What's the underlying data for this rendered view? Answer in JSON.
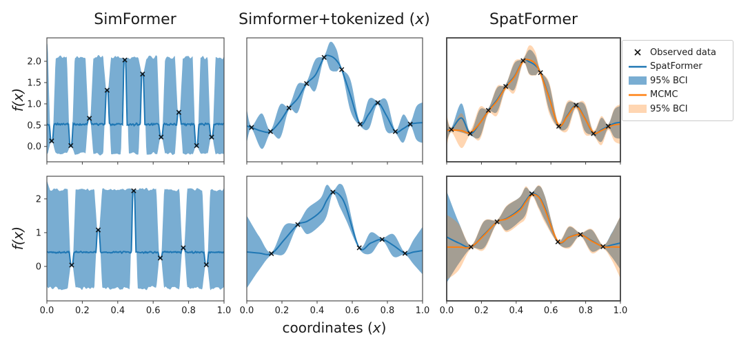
{
  "figure": {
    "titles": [
      {
        "text": "SimFormer"
      },
      {
        "text": "Simformer+tokenized (x)"
      },
      {
        "text": "SpatFormer"
      }
    ],
    "ylabel": "f(x)",
    "xlabel": "coordinates (x)",
    "colors": {
      "spatformer_line": "#1f77b4",
      "spatformer_fill": "rgba(31,119,180,0.6)",
      "mcmc_line": "#ff7f0e",
      "mcmc_fill": "rgba(255,127,14,0.32)",
      "marker": "#111111",
      "spine": "#3c3c3c",
      "text": "#1b1b1b"
    },
    "legend": {
      "items": [
        {
          "swatch": "x-marker",
          "label": "Observed data"
        },
        {
          "swatch": "blue-line",
          "label": "SpatFormer"
        },
        {
          "swatch": "blue-patch",
          "label": "95% BCI"
        },
        {
          "swatch": "orange-line",
          "label": "MCMC"
        },
        {
          "swatch": "orange-patch",
          "label": "95% BCI"
        }
      ]
    }
  },
  "chart_data": [
    {
      "id": "simformer-row1",
      "type": "simformer_band",
      "row": 0,
      "col": 0,
      "xlim": [
        0,
        1
      ],
      "ylim": [
        -0.36,
        2.55
      ],
      "yticks": [
        0.0,
        0.5,
        1.0,
        1.5,
        2.0
      ],
      "ytick_labels": [
        "0.0",
        "0.5",
        "1.0",
        "1.5",
        "2.0"
      ],
      "xticks": [
        0,
        0.2,
        0.4,
        0.6,
        0.8,
        1
      ],
      "observed_x": [
        0.027,
        0.135,
        0.24,
        0.34,
        0.44,
        0.54,
        0.645,
        0.745,
        0.845,
        0.93
      ],
      "observed_y": [
        0.13,
        0.02,
        0.66,
        1.32,
        2.03,
        1.7,
        0.22,
        0.8,
        0.02,
        0.22
      ],
      "band_top": 2.1,
      "band_bottom": -0.17,
      "mean_level": 0.52,
      "top_noise": 0.055,
      "bottom_noise": 0.04,
      "mean_noise": 0.03,
      "edge_spike_top": 2.45,
      "notch_width": 0.022,
      "seed": 11
    },
    {
      "id": "tokenized-row1",
      "type": "gp",
      "row": 0,
      "col": 1,
      "xlim": [
        0,
        1
      ],
      "ylim": [
        -0.8,
        2.56
      ],
      "xticks": [
        0,
        0.2,
        0.4,
        0.6,
        0.8,
        1
      ],
      "observed_x": [
        0.027,
        0.135,
        0.24,
        0.34,
        0.44,
        0.54,
        0.645,
        0.745,
        0.845,
        0.93
      ],
      "observed_y": [
        0.13,
        0.02,
        0.66,
        1.32,
        2.03,
        1.7,
        0.22,
        0.8,
        0.02,
        0.22
      ],
      "x": [
        0,
        0.027,
        0.085,
        0.135,
        0.19,
        0.24,
        0.29,
        0.34,
        0.39,
        0.44,
        0.475,
        0.51,
        0.54,
        0.59,
        0.645,
        0.695,
        0.745,
        0.795,
        0.845,
        0.89,
        0.93,
        0.965,
        1
      ],
      "mean": [
        0.17,
        0.13,
        0.03,
        0.02,
        0.3,
        0.66,
        0.92,
        1.32,
        1.55,
        2.03,
        2.07,
        1.95,
        1.7,
        1.0,
        0.22,
        0.5,
        0.8,
        0.45,
        0.02,
        0.1,
        0.22,
        0.25,
        0.26
      ],
      "half": [
        0.45,
        0.04,
        0.48,
        0.04,
        0.45,
        0.05,
        0.38,
        0.05,
        0.42,
        0.04,
        0.38,
        0.3,
        0.04,
        0.42,
        0.05,
        0.4,
        0.05,
        0.42,
        0.04,
        0.38,
        0.05,
        0.45,
        0.55
      ]
    },
    {
      "id": "spatformer-row1",
      "type": "gp_mcmc",
      "row": 0,
      "col": 2,
      "xlim": [
        0,
        1
      ],
      "ylim": [
        -0.76,
        2.66
      ],
      "xticks": [
        0,
        0.2,
        0.4,
        0.6,
        0.8,
        1
      ],
      "observed_x": [
        0.027,
        0.135,
        0.24,
        0.34,
        0.44,
        0.54,
        0.645,
        0.745,
        0.845,
        0.93
      ],
      "observed_y": [
        0.13,
        0.02,
        0.66,
        1.32,
        2.03,
        1.7,
        0.22,
        0.8,
        0.02,
        0.22
      ],
      "x": [
        0,
        0.027,
        0.085,
        0.135,
        0.19,
        0.24,
        0.29,
        0.34,
        0.39,
        0.44,
        0.475,
        0.51,
        0.54,
        0.59,
        0.645,
        0.695,
        0.745,
        0.795,
        0.845,
        0.89,
        0.93,
        0.965,
        1
      ],
      "mean": [
        0.14,
        0.13,
        0.45,
        0.02,
        0.3,
        0.66,
        0.95,
        1.32,
        1.6,
        2.03,
        2.0,
        1.9,
        1.7,
        1.02,
        0.22,
        0.52,
        0.8,
        0.45,
        0.02,
        0.12,
        0.22,
        0.3,
        0.33
      ],
      "half": [
        0.35,
        0.05,
        0.4,
        0.05,
        0.38,
        0.06,
        0.33,
        0.06,
        0.36,
        0.05,
        0.33,
        0.27,
        0.05,
        0.36,
        0.06,
        0.34,
        0.06,
        0.36,
        0.05,
        0.33,
        0.06,
        0.38,
        0.45
      ],
      "mcmc_mean": [
        0.1,
        0.12,
        0.1,
        0.04,
        0.3,
        0.64,
        0.92,
        1.3,
        1.58,
        2.02,
        2.05,
        1.95,
        1.68,
        1.0,
        0.24,
        0.5,
        0.78,
        0.44,
        0.04,
        0.1,
        0.2,
        0.26,
        0.28
      ],
      "mcmc_half": [
        0.45,
        0.07,
        0.48,
        0.07,
        0.45,
        0.08,
        0.4,
        0.08,
        0.43,
        0.07,
        0.4,
        0.33,
        0.07,
        0.43,
        0.08,
        0.41,
        0.08,
        0.43,
        0.07,
        0.4,
        0.08,
        0.45,
        0.55
      ]
    },
    {
      "id": "simformer-row2",
      "type": "simformer_band",
      "row": 1,
      "col": 0,
      "xlim": [
        0,
        1
      ],
      "ylim": [
        -1.02,
        2.67
      ],
      "yticks": [
        0,
        1,
        2
      ],
      "ytick_labels": [
        "0",
        "1",
        "2"
      ],
      "xticks": [
        0,
        0.2,
        0.4,
        0.6,
        0.8,
        1
      ],
      "xtick_labels": [
        "0.0",
        "0.2",
        "0.4",
        "0.6",
        "0.8",
        "1.0"
      ],
      "observed_x": [
        0.14,
        0.29,
        0.49,
        0.64,
        0.77,
        0.9
      ],
      "observed_y": [
        0.04,
        1.08,
        2.24,
        0.25,
        0.55,
        0.05
      ],
      "band_top": 2.28,
      "band_bottom": -0.65,
      "mean_level": 0.42,
      "top_noise": 0.05,
      "bottom_noise": 0.07,
      "mean_noise": 0.028,
      "edge_spike_top": 2.55,
      "notch_width": 0.022,
      "seed": 29
    },
    {
      "id": "tokenized-row2",
      "type": "gp",
      "row": 1,
      "col": 1,
      "xlim": [
        0,
        1
      ],
      "ylim": [
        -1.65,
        2.81
      ],
      "xticks": [
        0,
        0.2,
        0.4,
        0.6,
        0.8,
        1
      ],
      "xtick_labels": [
        "0.0",
        "0.2",
        "0.4",
        "0.6",
        "0.8",
        "1.0"
      ],
      "observed_x": [
        0.14,
        0.29,
        0.49,
        0.64,
        0.77,
        0.9
      ],
      "observed_y": [
        0.04,
        1.08,
        2.24,
        0.25,
        0.55,
        0.05
      ],
      "x": [
        0,
        0.07,
        0.14,
        0.215,
        0.29,
        0.345,
        0.42,
        0.455,
        0.49,
        0.53,
        0.565,
        0.64,
        0.705,
        0.77,
        0.835,
        0.9,
        0.95,
        1
      ],
      "mean": [
        0.1,
        0.06,
        0.04,
        0.55,
        1.08,
        1.2,
        1.55,
        1.95,
        2.24,
        2.12,
        1.7,
        0.25,
        0.42,
        0.55,
        0.33,
        0.05,
        0.1,
        0.15
      ],
      "half": [
        1.3,
        0.6,
        0.05,
        0.5,
        0.06,
        0.46,
        0.48,
        0.55,
        0.05,
        0.42,
        0.46,
        0.05,
        0.38,
        0.05,
        0.4,
        0.05,
        0.45,
        0.85
      ]
    },
    {
      "id": "spatformer-row2",
      "type": "gp_mcmc",
      "row": 1,
      "col": 2,
      "xlim": [
        0,
        1
      ],
      "ylim": [
        -2.2,
        2.97
      ],
      "xticks": [
        0,
        0.2,
        0.4,
        0.6,
        0.8,
        1
      ],
      "xtick_labels": [
        "0.0",
        "0.2",
        "0.4",
        "0.6",
        "0.8",
        "1.0"
      ],
      "observed_x": [
        0.14,
        0.29,
        0.49,
        0.64,
        0.77,
        0.9
      ],
      "observed_y": [
        0.04,
        1.08,
        2.24,
        0.25,
        0.55,
        0.05
      ],
      "x": [
        0,
        0.07,
        0.14,
        0.215,
        0.29,
        0.345,
        0.42,
        0.455,
        0.49,
        0.53,
        0.565,
        0.64,
        0.705,
        0.77,
        0.835,
        0.9,
        0.95,
        1
      ],
      "mean": [
        0.45,
        0.2,
        0.04,
        0.55,
        1.08,
        1.22,
        1.6,
        1.95,
        2.24,
        2.12,
        1.65,
        0.25,
        0.45,
        0.55,
        0.3,
        0.05,
        0.12,
        0.2
      ],
      "half": [
        1.9,
        0.85,
        0.06,
        0.55,
        0.07,
        0.5,
        0.5,
        0.55,
        0.06,
        0.45,
        0.5,
        0.06,
        0.42,
        0.06,
        0.45,
        0.06,
        0.5,
        1.1
      ],
      "mcmc_mean": [
        0.03,
        0.03,
        0.04,
        0.52,
        1.08,
        1.2,
        1.55,
        1.9,
        2.2,
        2.1,
        1.6,
        0.27,
        0.44,
        0.55,
        0.28,
        0.05,
        0.04,
        0.03
      ],
      "mcmc_half": [
        1.35,
        0.95,
        0.08,
        0.6,
        0.09,
        0.55,
        0.55,
        0.65,
        0.08,
        0.5,
        0.55,
        0.08,
        0.46,
        0.08,
        0.5,
        0.08,
        0.55,
        1.3
      ]
    }
  ]
}
